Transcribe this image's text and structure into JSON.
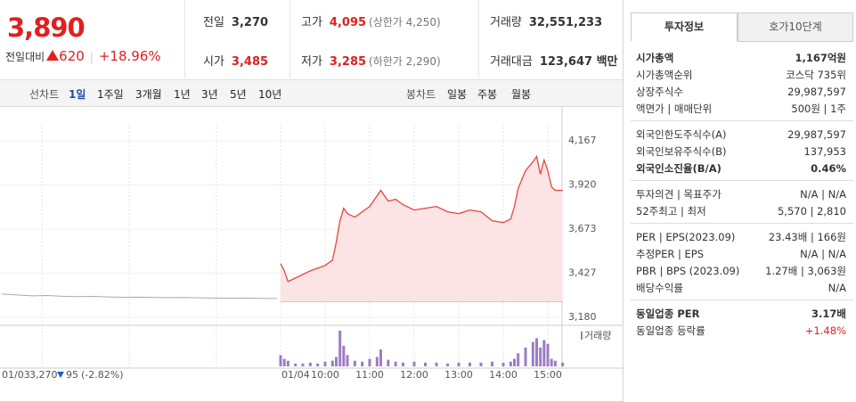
{
  "header": {
    "price": "3,890",
    "change_label": "전일대비",
    "change": "620",
    "change_rate": "+18.96%",
    "summary": [
      [
        {
          "label": "전일",
          "value": "3,270"
        },
        {
          "label": "고가",
          "value": "4,095",
          "note": "(상한가 4,250)",
          "color": "#e02020"
        },
        {
          "label": "거래량",
          "value": "32,551,233"
        }
      ],
      [
        {
          "label": "시가",
          "value": "3,485",
          "color": "#e02020"
        },
        {
          "label": "저가",
          "value": "3,285",
          "note": "(하한가 2,290)",
          "color": "#e02020"
        },
        {
          "label": "거래대금",
          "value": "123,647 백만"
        }
      ]
    ]
  },
  "toolbar": {
    "line_label": "선차트",
    "periods": [
      "1일",
      "1주일",
      "3개월",
      "1년",
      "3년",
      "5년",
      "10년"
    ],
    "candle_label": "봉차트",
    "candles": [
      "일봉",
      "주봉",
      "월봉"
    ]
  },
  "chart_data": {
    "type": "line",
    "color": "#e8453c",
    "fill": "#fde4e4",
    "x": [
      "09:00",
      "09:05",
      "09:10",
      "09:20",
      "09:30",
      "09:40",
      "09:50",
      "10:00",
      "10:10",
      "10:15",
      "10:20",
      "10:25",
      "10:30",
      "10:40",
      "10:50",
      "11:00",
      "11:10",
      "11:15",
      "11:25",
      "11:35",
      "11:45",
      "12:00",
      "12:15",
      "12:30",
      "12:45",
      "13:00",
      "13:15",
      "13:30",
      "13:45",
      "14:00",
      "14:10",
      "14:15",
      "14:20",
      "14:30",
      "14:40",
      "14:45",
      "14:50",
      "14:55",
      "15:00",
      "15:05",
      "15:10",
      "15:20"
    ],
    "values": [
      3480,
      3440,
      3380,
      3400,
      3420,
      3440,
      3455,
      3470,
      3500,
      3600,
      3720,
      3790,
      3760,
      3740,
      3770,
      3800,
      3860,
      3890,
      3830,
      3840,
      3810,
      3780,
      3790,
      3800,
      3770,
      3760,
      3780,
      3770,
      3720,
      3710,
      3730,
      3800,
      3900,
      4000,
      4050,
      4080,
      3980,
      4060,
      4000,
      3910,
      3890,
      3890
    ],
    "reference": 3270,
    "ylim": [
      3180,
      4167
    ],
    "yticks": [
      {
        "value": 3180,
        "label": "3,180"
      },
      {
        "value": 3427,
        "label": "3,427"
      },
      {
        "value": 3673,
        "label": "3,673"
      },
      {
        "value": 3920,
        "label": "3,920"
      },
      {
        "value": 4167,
        "label": "4,167"
      }
    ],
    "xticks": [
      "10:00",
      "11:00",
      "12:00",
      "13:00",
      "14:00",
      "15:00"
    ],
    "day_label": "01/04",
    "volume": {
      "name": "거래량",
      "color": "#9b7dc3",
      "values": [
        12,
        8,
        6,
        3,
        3,
        4,
        3,
        5,
        6,
        10,
        38,
        22,
        12,
        6,
        5,
        8,
        10,
        18,
        7,
        5,
        4,
        5,
        4,
        4,
        3,
        4,
        4,
        4,
        5,
        4,
        5,
        8,
        14,
        20,
        26,
        30,
        20,
        28,
        24,
        8,
        6,
        4
      ]
    },
    "previous_day": {
      "label": "01/03",
      "close": "3,270",
      "change": "95",
      "change_rate": "(-2.82%)",
      "color": "#aaaaaa",
      "values": [
        3310,
        3305,
        3300,
        3302,
        3298,
        3296,
        3297,
        3294,
        3292,
        3293,
        3291,
        3290,
        3291,
        3289,
        3288,
        3287,
        3288,
        3286,
        3285
      ]
    }
  },
  "info": {
    "tabs": [
      "투자정보",
      "호가10단계"
    ],
    "groups": [
      [
        {
          "label": "시가총액",
          "value": "1,167억원",
          "strong": true
        },
        {
          "label": "시가총액순위",
          "value": "코스닥 735위"
        },
        {
          "label": "상장주식수",
          "value": "29,987,597"
        },
        {
          "label": "액면가 | 매매단위",
          "value": "500원 | 1주"
        }
      ],
      [
        {
          "label": "외국인한도주식수(A)",
          "value": "29,987,597"
        },
        {
          "label": "외국인보유주식수(B)",
          "value": "137,953"
        },
        {
          "label": "외국인소진율(B/A)",
          "value": "0.46%",
          "strong": true
        }
      ],
      [
        {
          "label": "투자의견 | 목표주가",
          "value": "N/A | N/A"
        },
        {
          "label": "52주최고 | 최저",
          "value": "5,570 | 2,810"
        }
      ],
      [
        {
          "label": "PER | EPS(2023.09)",
          "value": "23.43배 | 166원"
        },
        {
          "label": "추정PER | EPS",
          "value": "N/A | N/A"
        },
        {
          "label": "PBR | BPS (2023.09)",
          "value": "1.27배 | 3,063원"
        },
        {
          "label": "배당수익률",
          "value": "N/A"
        }
      ],
      [
        {
          "label": "동일업종 PER",
          "value": "3.17배",
          "strong": true
        },
        {
          "label": "동일업종 등락률",
          "value": "+1.48%",
          "color": "#e02020"
        }
      ]
    ]
  }
}
